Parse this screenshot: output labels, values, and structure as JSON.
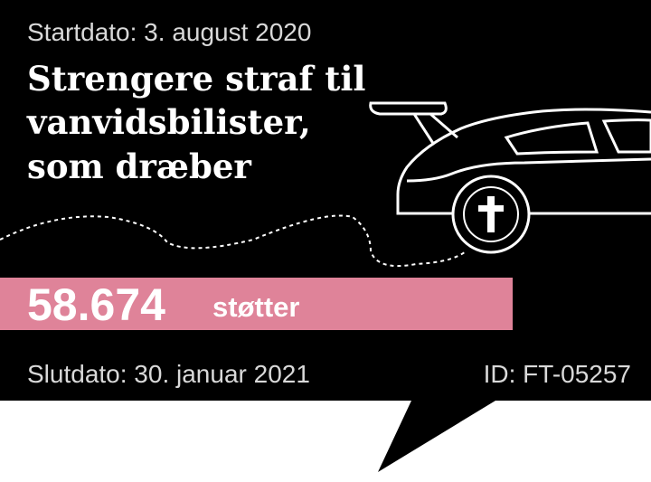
{
  "petition": {
    "start_date": "Startdato: 3. august 2020",
    "title_lines": [
      "Strengere straf til",
      "vanvidsbilister,",
      "som dræber"
    ],
    "supporters_count": "58.674",
    "supporters_label": "støtter",
    "end_date": "Slutdato: 30. januar 2021",
    "id": "ID: FT-05257"
  }
}
